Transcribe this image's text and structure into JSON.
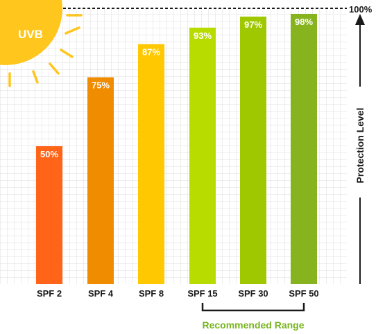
{
  "chart_data": {
    "type": "bar",
    "categories": [
      "SPF 2",
      "SPF 4",
      "SPF 8",
      "SPF 15",
      "SPF 30",
      "SPF 50"
    ],
    "values": [
      50,
      75,
      87,
      93,
      97,
      98
    ],
    "value_labels": [
      "50%",
      "75%",
      "87%",
      "93%",
      "97%",
      "98%"
    ],
    "bar_colors": [
      "#ff6418",
      "#f08c00",
      "#ffc800",
      "#b9dc00",
      "#a0c800",
      "#87b41e"
    ],
    "ylim": [
      0,
      100
    ],
    "top_label": "100%",
    "ylabel": "Protection Level",
    "grid": true,
    "badge": "UVB",
    "bracket": {
      "label": "Recommended Range",
      "categories": [
        "SPF 15",
        "SPF 30",
        "SPF 50"
      ],
      "color": "#78b41e"
    }
  },
  "colors": {
    "grid": "#d9d9d9",
    "axis": "#1a1a1a",
    "sun": "#ffc61e"
  }
}
